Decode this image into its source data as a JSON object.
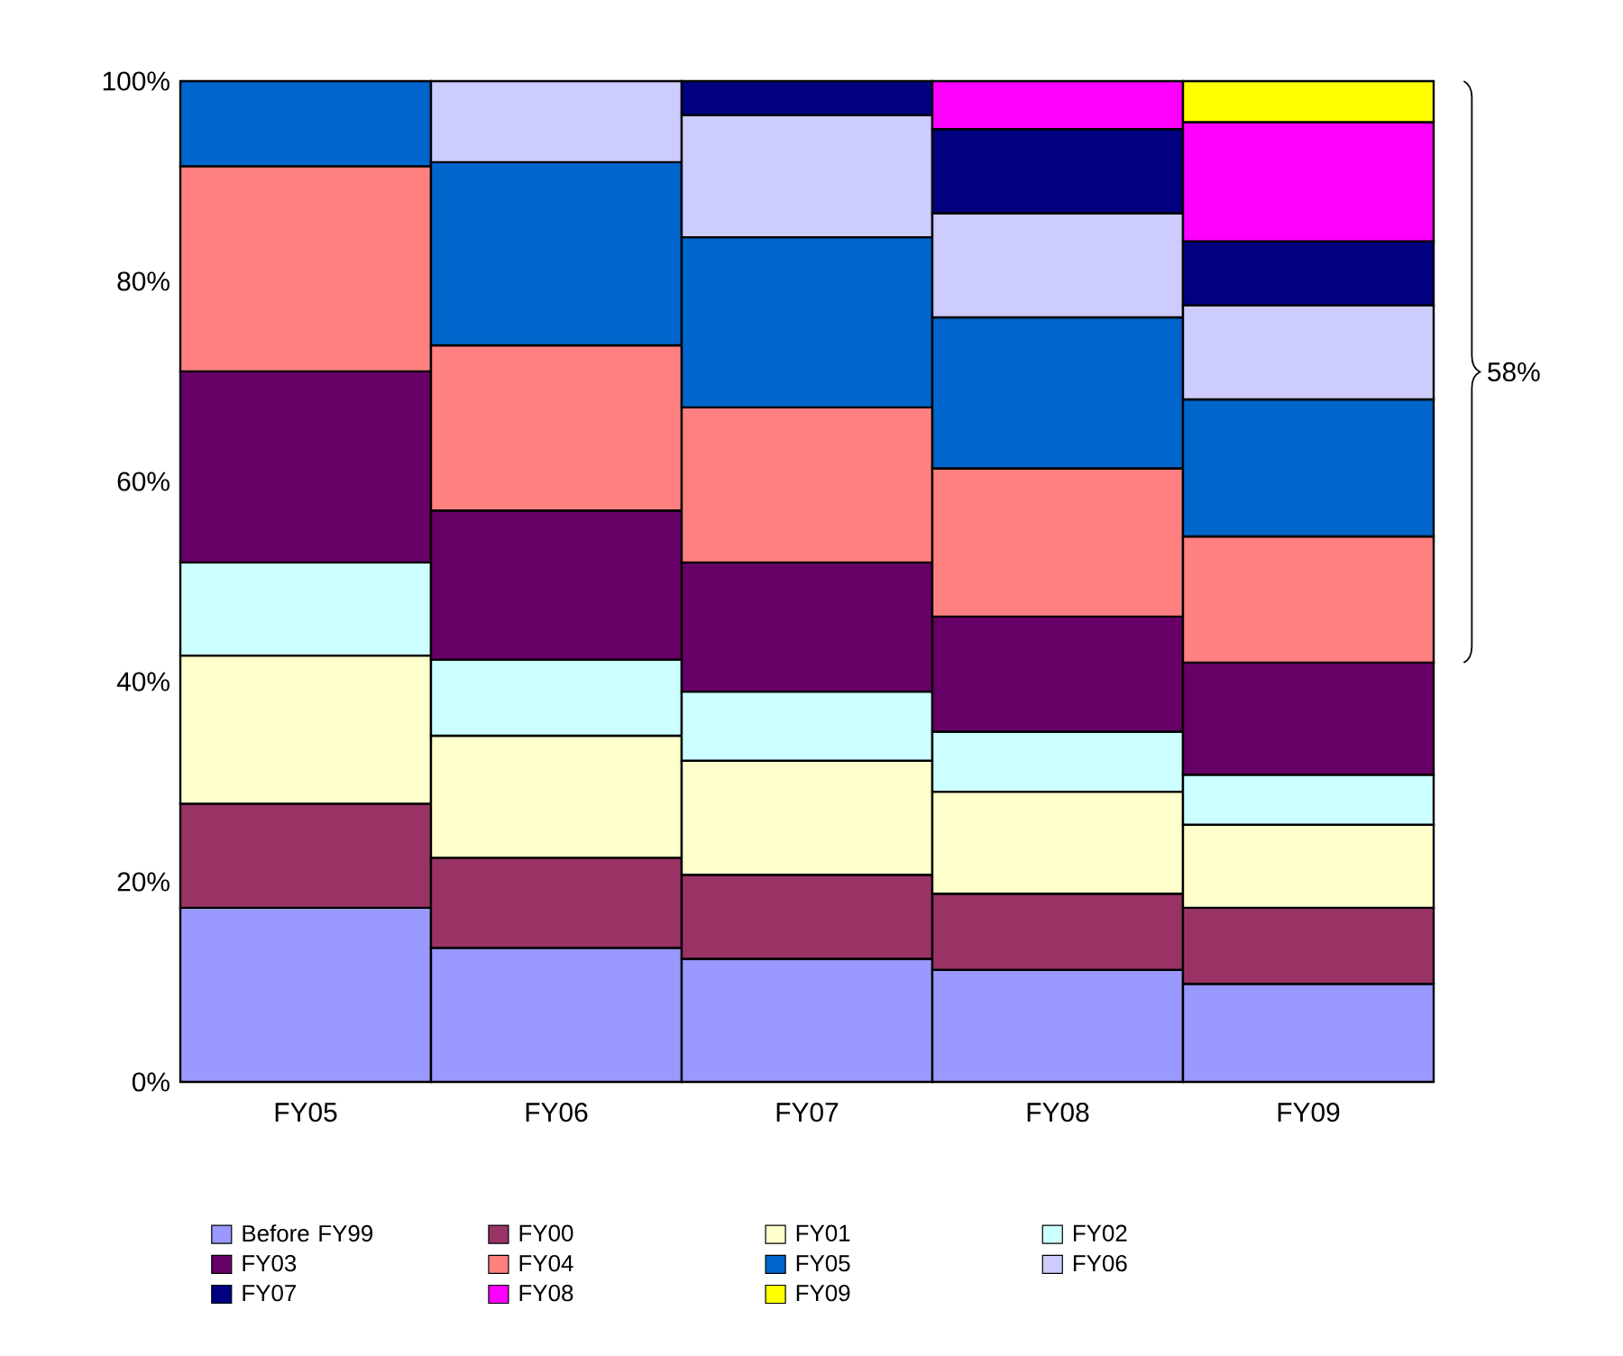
{
  "chart_data": {
    "type": "bar",
    "stacked": true,
    "categories": [
      "FY05",
      "FY06",
      "FY07",
      "FY08",
      "FY09"
    ],
    "series": [
      {
        "name": "Before FY99",
        "color": "#9999ff",
        "values": [
          17.4,
          13.4,
          12.3,
          11.2,
          9.8
        ]
      },
      {
        "name": "FY00",
        "color": "#993366",
        "values": [
          10.4,
          9.0,
          8.4,
          7.6,
          7.6
        ]
      },
      {
        "name": "FY01",
        "color": "#ffffcc",
        "values": [
          14.8,
          12.2,
          11.4,
          10.2,
          8.3
        ]
      },
      {
        "name": "FY02",
        "color": "#ccffff",
        "values": [
          9.3,
          7.6,
          6.9,
          6.0,
          5.0
        ]
      },
      {
        "name": "FY03",
        "color": "#660066",
        "values": [
          19.1,
          14.9,
          12.9,
          11.5,
          11.2
        ]
      },
      {
        "name": "FY04",
        "color": "#ff8080",
        "values": [
          20.5,
          16.5,
          15.5,
          14.8,
          12.6
        ]
      },
      {
        "name": "FY05",
        "color": "#0066cc",
        "values": [
          8.5,
          18.3,
          17.0,
          15.1,
          13.7
        ]
      },
      {
        "name": "FY06",
        "color": "#ccccff",
        "values": [
          null,
          8.1,
          12.2,
          10.4,
          9.4
        ]
      },
      {
        "name": "FY07",
        "color": "#000080",
        "values": [
          null,
          null,
          3.4,
          8.4,
          6.4
        ]
      },
      {
        "name": "FY08",
        "color": "#ff00ff",
        "values": [
          null,
          null,
          null,
          4.8,
          11.9
        ]
      },
      {
        "name": "FY09",
        "color": "#ffff00",
        "values": [
          null,
          null,
          null,
          null,
          4.1
        ]
      }
    ],
    "ylim": [
      0,
      100
    ],
    "yticks": [
      {
        "value": 0,
        "label": "0%"
      },
      {
        "value": 20,
        "label": "20%"
      },
      {
        "value": 40,
        "label": "40%"
      },
      {
        "value": 60,
        "label": "60%"
      },
      {
        "value": 80,
        "label": "80%"
      },
      {
        "value": 100,
        "label": "100%"
      }
    ],
    "annotations": [
      "58%"
    ],
    "legend": "bottom"
  }
}
